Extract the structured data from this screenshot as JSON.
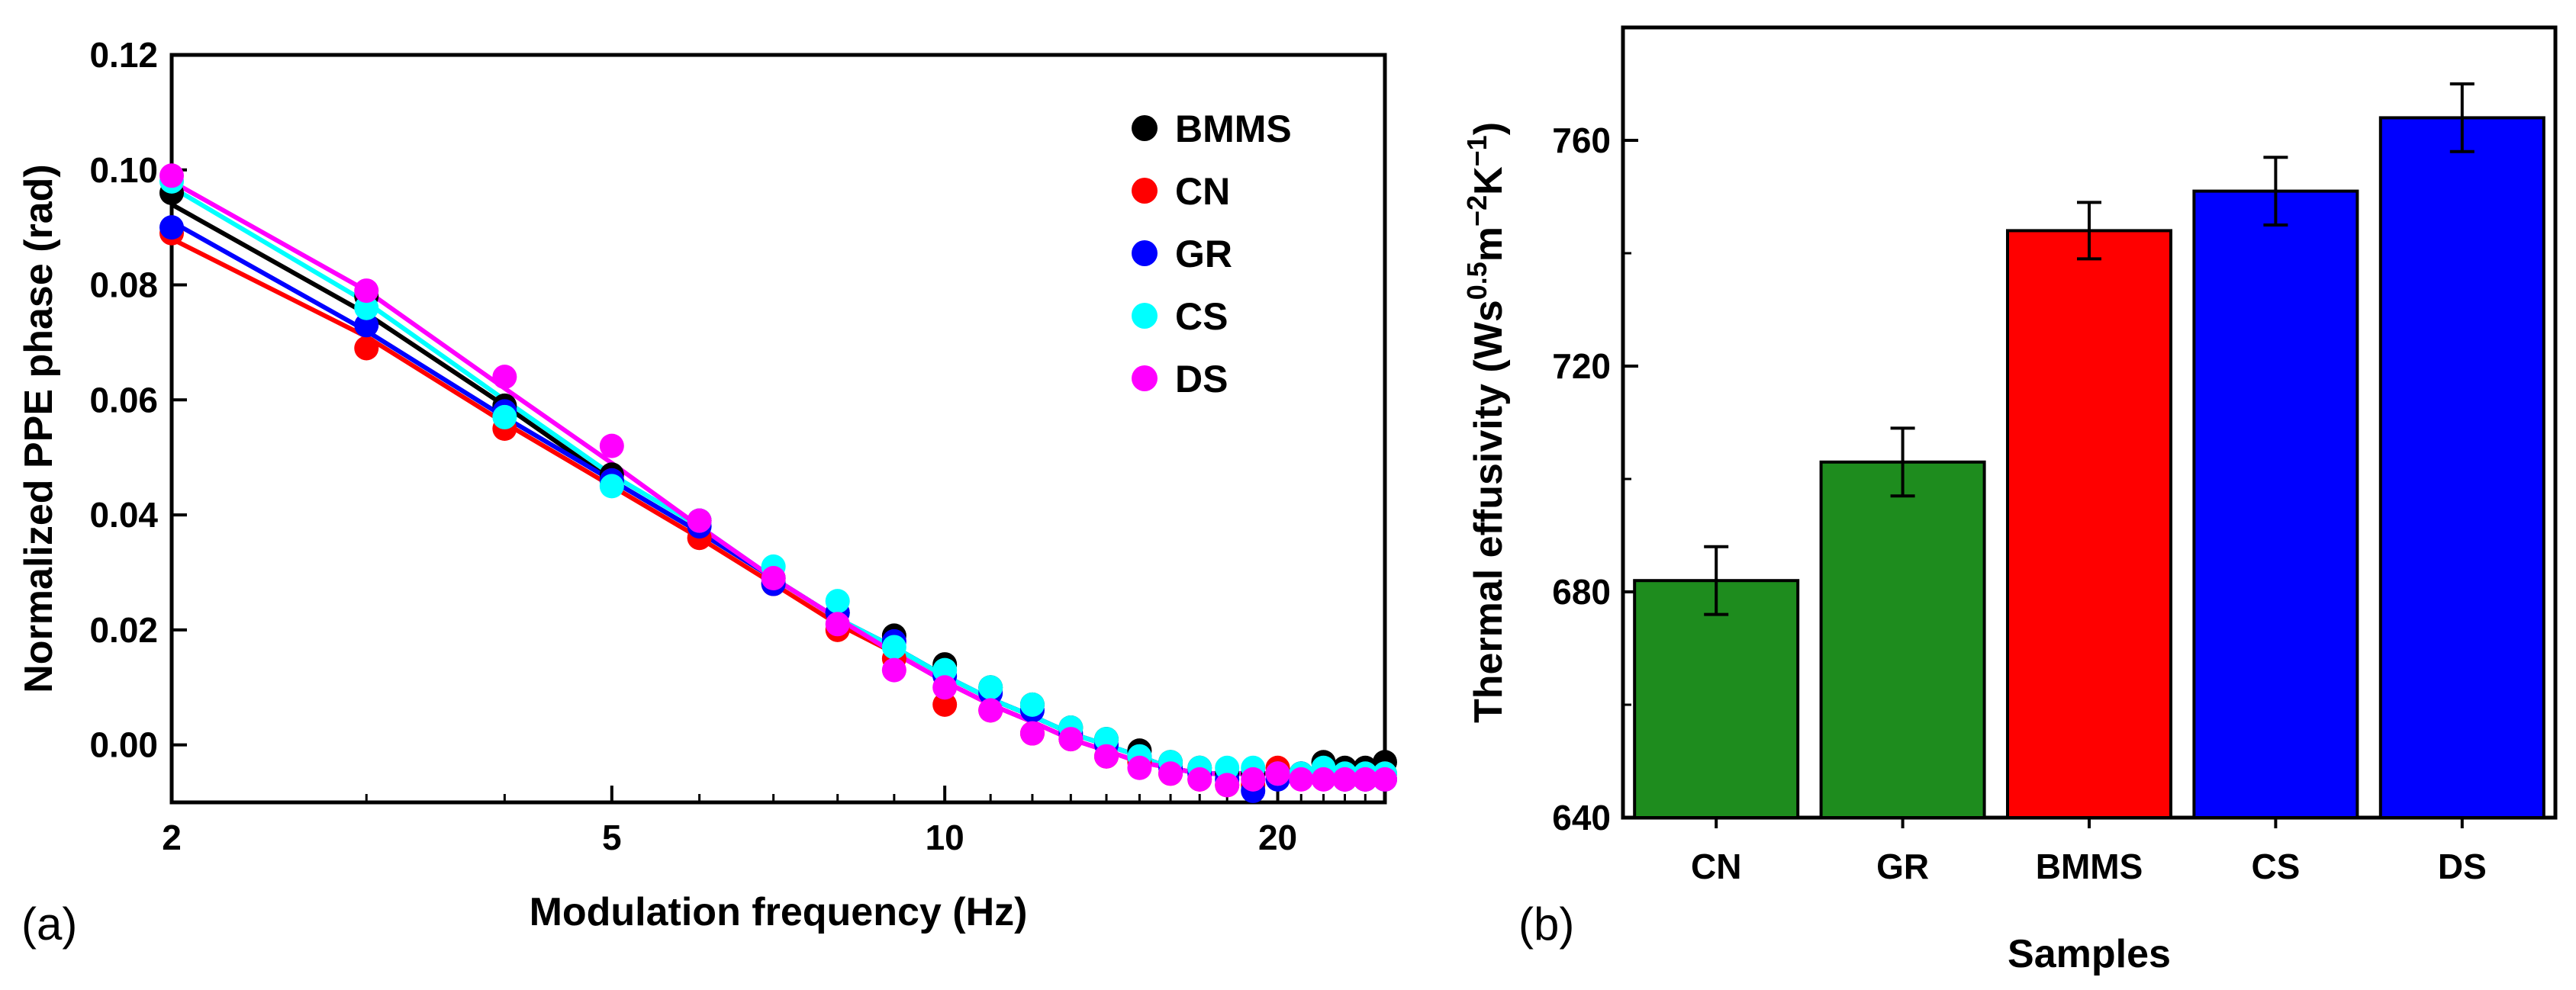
{
  "chart_data": [
    {
      "panel": "(a)",
      "type": "scatter",
      "xlabel": "Modulation frequency (Hz)",
      "ylabel": "Normalized PPE phase (rad)",
      "xscale": "log",
      "xlim": [
        2,
        25
      ],
      "ylim": [
        -0.01,
        0.12
      ],
      "xticks": [
        2,
        5,
        10,
        20
      ],
      "xtick_labels": [
        "2",
        "5",
        "10",
        "20"
      ],
      "yticks": [
        0,
        0.02,
        0.04,
        0.06,
        0.08,
        0.1,
        0.12
      ],
      "ytick_labels": [
        "0.00",
        "0.02",
        "0.04",
        "0.06",
        "0.08",
        "0.10",
        "0.12"
      ],
      "grid": false,
      "legend_position": "top-right",
      "fit_lines": true,
      "series": [
        {
          "name": "BMMS",
          "color": "#000000",
          "x": [
            2,
            3,
            4,
            5,
            6,
            7,
            8,
            9,
            10,
            11,
            12,
            13,
            14,
            15,
            16,
            17,
            18,
            19,
            20,
            21,
            22,
            23,
            24,
            25
          ],
          "y": [
            0.096,
            0.078,
            0.059,
            0.047,
            0.039,
            0.029,
            0.023,
            0.019,
            0.014,
            0.01,
            0.007,
            0.003,
            0.001,
            -0.001,
            -0.003,
            -0.004,
            -0.005,
            -0.005,
            -0.005,
            -0.005,
            -0.003,
            -0.004,
            -0.004,
            -0.003
          ],
          "fit": [
            0.094,
            0.075,
            0.059,
            0.046,
            0.037,
            0.029,
            0.022,
            0.017,
            0.012,
            0.008,
            0.005,
            0.002,
            0.0,
            -0.002,
            -0.004,
            -0.005,
            -0.005,
            -0.005,
            -0.005,
            -0.005,
            -0.004,
            -0.004,
            -0.004,
            -0.004
          ]
        },
        {
          "name": "CN",
          "color": "#ff0000",
          "x": [
            2,
            3,
            4,
            5,
            6,
            7,
            8,
            9,
            10,
            11,
            12,
            13,
            14,
            15,
            16,
            17,
            18,
            19,
            20,
            21,
            22,
            23,
            24,
            25
          ],
          "y": [
            0.089,
            0.069,
            0.055,
            0.046,
            0.036,
            0.028,
            0.02,
            0.015,
            0.007,
            0.006,
            0.002,
            0.001,
            -0.002,
            -0.003,
            -0.005,
            -0.006,
            -0.007,
            -0.007,
            -0.004,
            -0.005,
            -0.005,
            -0.006,
            -0.006,
            -0.005
          ],
          "fit": [
            0.088,
            0.071,
            0.056,
            0.045,
            0.036,
            0.028,
            0.021,
            0.016,
            0.011,
            0.007,
            0.004,
            0.001,
            -0.001,
            -0.003,
            -0.004,
            -0.005,
            -0.005,
            -0.005,
            -0.005,
            -0.005,
            -0.004,
            -0.004,
            -0.004,
            -0.004
          ]
        },
        {
          "name": "GR",
          "color": "#0000ff",
          "x": [
            2,
            3,
            4,
            5,
            6,
            7,
            8,
            9,
            10,
            11,
            12,
            13,
            14,
            15,
            16,
            17,
            18,
            19,
            20,
            21,
            22,
            23,
            24,
            25
          ],
          "y": [
            0.09,
            0.073,
            0.058,
            0.046,
            0.038,
            0.028,
            0.023,
            0.018,
            0.012,
            0.009,
            0.006,
            0.002,
            0.0,
            -0.002,
            -0.004,
            -0.005,
            -0.006,
            -0.008,
            -0.006,
            -0.005,
            -0.005,
            -0.006,
            -0.006,
            -0.006
          ],
          "fit": [
            0.091,
            0.072,
            0.057,
            0.046,
            0.037,
            0.029,
            0.022,
            0.017,
            0.012,
            0.008,
            0.005,
            0.002,
            0.0,
            -0.002,
            -0.004,
            -0.005,
            -0.005,
            -0.005,
            -0.005,
            -0.005,
            -0.004,
            -0.004,
            -0.004,
            -0.004
          ]
        },
        {
          "name": "CS",
          "color": "#00ffff",
          "x": [
            2,
            3,
            4,
            5,
            6,
            7,
            8,
            9,
            10,
            11,
            12,
            13,
            14,
            15,
            16,
            17,
            18,
            19,
            20,
            21,
            22,
            23,
            24,
            25
          ],
          "y": [
            0.098,
            0.076,
            0.057,
            0.045,
            0.039,
            0.031,
            0.025,
            0.017,
            0.013,
            0.01,
            0.007,
            0.003,
            0.001,
            -0.002,
            -0.003,
            -0.004,
            -0.004,
            -0.004,
            -0.005,
            -0.005,
            -0.004,
            -0.005,
            -0.005,
            -0.005
          ],
          "fit": [
            0.097,
            0.077,
            0.06,
            0.047,
            0.038,
            0.029,
            0.022,
            0.017,
            0.012,
            0.008,
            0.005,
            0.002,
            0.0,
            -0.002,
            -0.004,
            -0.005,
            -0.005,
            -0.005,
            -0.005,
            -0.005,
            -0.004,
            -0.004,
            -0.004,
            -0.004
          ]
        },
        {
          "name": "DS",
          "color": "#ff00ff",
          "x": [
            2,
            3,
            4,
            5,
            6,
            7,
            8,
            9,
            10,
            11,
            12,
            13,
            14,
            15,
            16,
            17,
            18,
            19,
            20,
            21,
            22,
            23,
            24,
            25
          ],
          "y": [
            0.099,
            0.079,
            0.064,
            0.052,
            0.039,
            0.029,
            0.021,
            0.013,
            0.01,
            0.006,
            0.002,
            0.001,
            -0.002,
            -0.004,
            -0.005,
            -0.006,
            -0.007,
            -0.006,
            -0.005,
            -0.006,
            -0.006,
            -0.006,
            -0.006,
            -0.006
          ],
          "fit": [
            0.098,
            0.079,
            0.062,
            0.049,
            0.038,
            0.029,
            0.022,
            0.016,
            0.011,
            0.007,
            0.004,
            0.001,
            -0.001,
            -0.003,
            -0.004,
            -0.005,
            -0.005,
            -0.005,
            -0.005,
            -0.005,
            -0.005,
            -0.005,
            -0.005,
            -0.005
          ]
        }
      ]
    },
    {
      "panel": "(b)",
      "type": "bar",
      "xlabel": "Samples",
      "ylabel_main": "Thermal effusivity (Ws",
      "ylabel_sup1": "0.5",
      "ylabel_mid1": "m",
      "ylabel_sup2": "−2",
      "ylabel_mid2": "K",
      "ylabel_sup3": "−1",
      "ylabel_end": ")",
      "ylim": [
        640,
        780
      ],
      "yticks": [
        640,
        680,
        720,
        760
      ],
      "ytick_labels": [
        "640",
        "680",
        "720",
        "760"
      ],
      "grid": false,
      "categories": [
        "CN",
        "GR",
        "BMMS",
        "CS",
        "DS"
      ],
      "values": [
        682,
        703,
        744,
        751,
        764
      ],
      "errors": [
        6,
        6,
        5,
        6,
        6
      ],
      "colors": [
        "#1e8c1e",
        "#1e8c1e",
        "#ff0000",
        "#0000ff",
        "#0000ff"
      ]
    }
  ]
}
